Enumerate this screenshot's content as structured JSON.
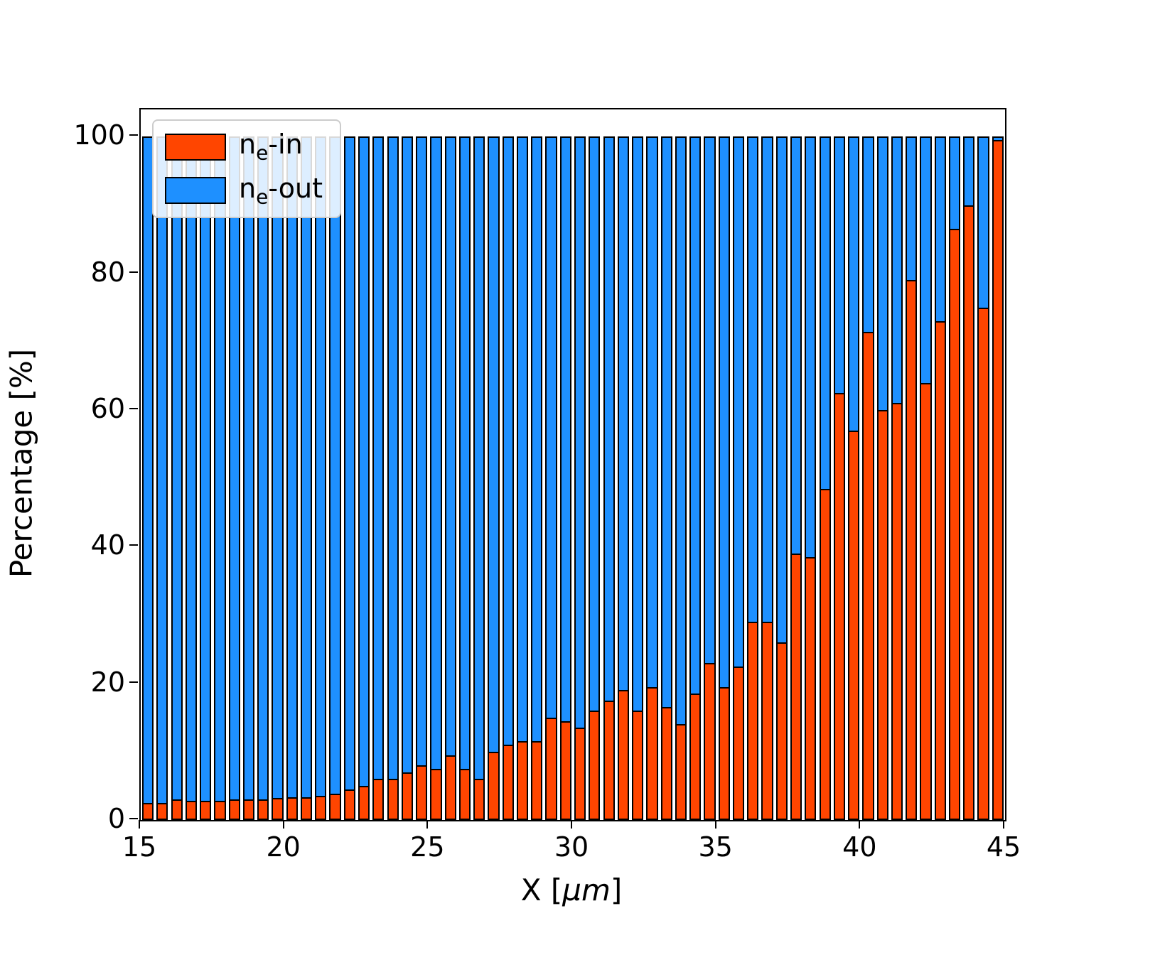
{
  "figure": {
    "background": "#ffffff"
  },
  "chart_data": {
    "type": "bar",
    "stacked": true,
    "title": "",
    "xlabel_prefix": "X  [",
    "xlabel_italic": "μm",
    "xlabel_suffix": "]",
    "ylabel": "Percentage  [%]",
    "xlim": [
      15,
      45
    ],
    "ylim": [
      0,
      104
    ],
    "x_ticks": [
      15,
      20,
      25,
      30,
      35,
      40,
      45
    ],
    "y_ticks": [
      0,
      20,
      40,
      60,
      80,
      100
    ],
    "bar_step": 0.5,
    "bar_fill_fraction": 0.8,
    "edge_color": "#000000",
    "x": [
      15.0,
      15.5,
      16.0,
      16.5,
      17.0,
      17.5,
      18.0,
      18.5,
      19.0,
      19.5,
      20.0,
      20.5,
      21.0,
      21.5,
      22.0,
      22.5,
      23.0,
      23.5,
      24.0,
      24.5,
      25.0,
      25.5,
      26.0,
      26.5,
      27.0,
      27.5,
      28.0,
      28.5,
      29.0,
      29.5,
      30.0,
      30.5,
      31.0,
      31.5,
      32.0,
      32.5,
      33.0,
      33.5,
      34.0,
      34.5,
      35.0,
      35.5,
      36.0,
      36.5,
      37.0,
      37.5,
      38.0,
      38.5,
      39.0,
      39.5,
      40.0,
      40.5,
      41.0,
      41.5,
      42.0,
      42.5,
      43.0,
      43.5,
      44.0,
      44.5
    ],
    "series": [
      {
        "name": "ne-in",
        "color": "#FF4500",
        "values": [
          2.5,
          2.5,
          3.0,
          2.8,
          2.8,
          2.8,
          3.0,
          3.0,
          3.0,
          3.2,
          3.3,
          3.3,
          3.5,
          3.8,
          4.5,
          5.0,
          6.0,
          6.0,
          7.0,
          8.0,
          7.5,
          9.5,
          7.5,
          6.0,
          10.0,
          11.0,
          11.5,
          11.5,
          15.0,
          14.5,
          13.5,
          16.0,
          17.5,
          19.0,
          16.0,
          19.5,
          16.5,
          14.0,
          18.5,
          23.0,
          19.5,
          22.5,
          29.0,
          29.0,
          26.0,
          39.0,
          38.5,
          48.5,
          62.5,
          57.0,
          71.5,
          60.0,
          61.0,
          79.0,
          64.0,
          73.0,
          86.5,
          90.0,
          75.0,
          99.5
        ]
      },
      {
        "name": "ne-out",
        "color": "#1E90FF",
        "values": [
          97.5,
          97.5,
          97.0,
          97.2,
          97.2,
          97.2,
          97.0,
          97.0,
          97.0,
          96.8,
          96.7,
          96.7,
          96.5,
          96.2,
          95.5,
          95.0,
          94.0,
          94.0,
          93.0,
          92.0,
          92.5,
          90.5,
          92.5,
          94.0,
          90.0,
          89.0,
          88.5,
          88.5,
          85.0,
          85.5,
          86.5,
          84.0,
          82.5,
          81.0,
          84.0,
          80.5,
          83.5,
          86.0,
          81.5,
          77.0,
          80.5,
          77.5,
          71.0,
          71.0,
          74.0,
          61.0,
          61.5,
          51.5,
          37.5,
          43.0,
          28.5,
          40.0,
          39.0,
          21.0,
          36.0,
          27.0,
          13.5,
          10.0,
          25.0,
          0.5
        ]
      }
    ],
    "legend_position": "upper-left",
    "grid": false
  },
  "legend": {
    "items": [
      {
        "prefix": "n",
        "sub": "e",
        "suffix": "-in",
        "color": "#FF4500"
      },
      {
        "prefix": "n",
        "sub": "e",
        "suffix": "-out",
        "color": "#1E90FF"
      }
    ]
  }
}
